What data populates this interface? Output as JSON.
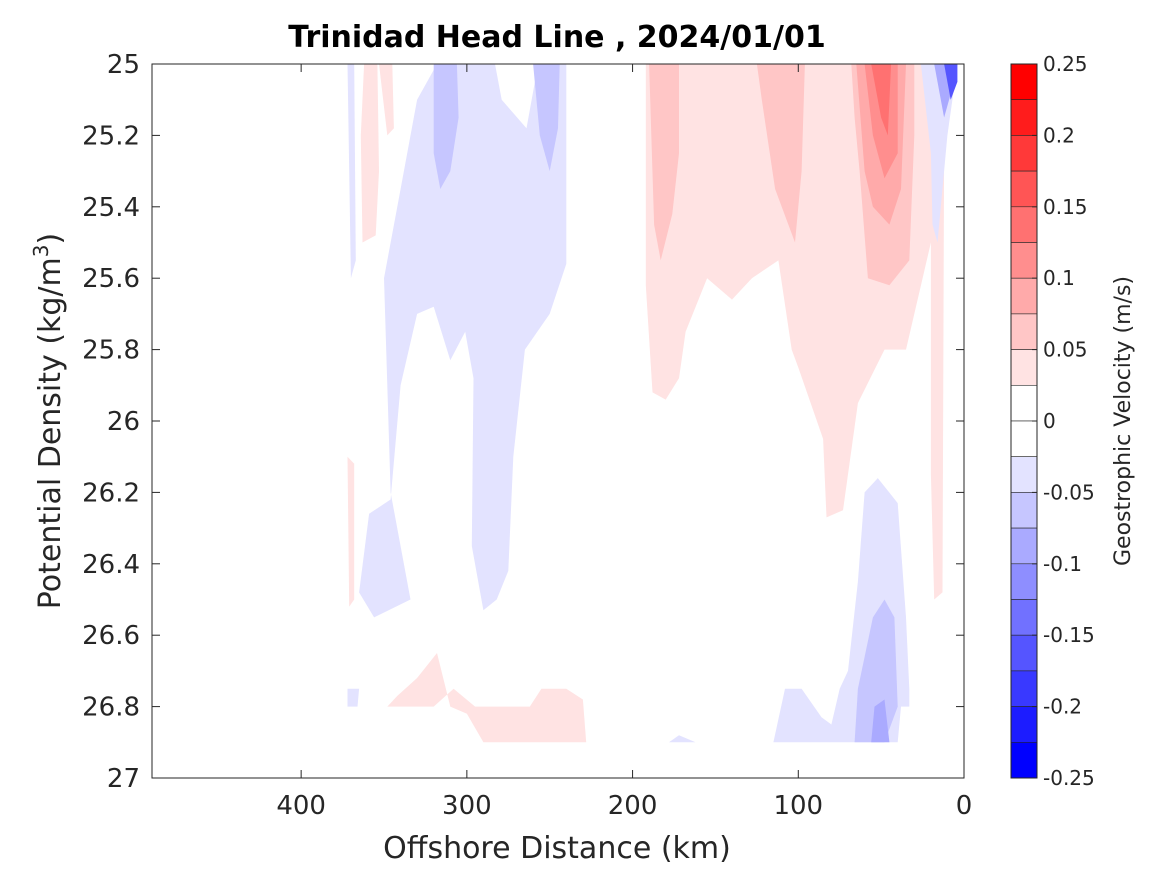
{
  "chart_data": {
    "type": "heatmap",
    "subtype": "filled-contour",
    "title": "Trinidad Head Line , 2024/01/01",
    "xlabel": "Offshore Distance (km)",
    "ylabel_main": "Potential Density (kg/m",
    "ylabel_sup": "3",
    "ylabel_close": ")",
    "xlim": [
      490,
      0
    ],
    "x_reversed": true,
    "ylim": [
      25,
      27
    ],
    "y_reversed": true,
    "x_ticks": [
      400,
      300,
      200,
      100,
      0
    ],
    "x_tick_labels": [
      "400",
      "300",
      "200",
      "100",
      "0"
    ],
    "y_ticks": [
      25,
      25.2,
      25.4,
      25.6,
      25.8,
      26,
      26.2,
      26.4,
      26.6,
      26.8,
      27
    ],
    "y_tick_labels": [
      "25",
      "25.2",
      "25.4",
      "25.6",
      "25.8",
      "26",
      "26.2",
      "26.4",
      "26.6",
      "26.8",
      "27"
    ],
    "colorbar": {
      "label": "Geostrophic Velocity (m/s)",
      "range": [
        -0.25,
        0.25
      ],
      "ticks": [
        0.25,
        0.2,
        0.15,
        0.1,
        0.05,
        0,
        -0.05,
        -0.1,
        -0.15,
        -0.2,
        -0.25
      ],
      "tick_labels": [
        "0.25",
        "0.2",
        "0.15",
        "0.1",
        "0.05",
        "0",
        "-0.05",
        "-0.1",
        "-0.15",
        "-0.2",
        "-0.25"
      ],
      "levels": [
        {
          "lo": 0.225,
          "hi": 0.25,
          "color": "#ff0000"
        },
        {
          "lo": 0.2,
          "hi": 0.225,
          "color": "#ff1c1c"
        },
        {
          "lo": 0.175,
          "hi": 0.2,
          "color": "#ff3939"
        },
        {
          "lo": 0.15,
          "hi": 0.175,
          "color": "#ff5555"
        },
        {
          "lo": 0.125,
          "hi": 0.15,
          "color": "#ff7171"
        },
        {
          "lo": 0.1,
          "hi": 0.125,
          "color": "#ff8e8e"
        },
        {
          "lo": 0.075,
          "hi": 0.1,
          "color": "#ffaaaa"
        },
        {
          "lo": 0.05,
          "hi": 0.075,
          "color": "#ffc6c6"
        },
        {
          "lo": 0.025,
          "hi": 0.05,
          "color": "#ffe3e3"
        },
        {
          "lo": 0.0,
          "hi": 0.025,
          "color": "#ffffff"
        },
        {
          "lo": -0.025,
          "hi": 0.0,
          "color": "#ffffff"
        },
        {
          "lo": -0.05,
          "hi": -0.025,
          "color": "#e3e3ff"
        },
        {
          "lo": -0.075,
          "hi": -0.05,
          "color": "#c6c6ff"
        },
        {
          "lo": -0.1,
          "hi": -0.075,
          "color": "#aaaaff"
        },
        {
          "lo": -0.125,
          "hi": -0.1,
          "color": "#8e8eff"
        },
        {
          "lo": -0.15,
          "hi": -0.125,
          "color": "#7171ff"
        },
        {
          "lo": -0.175,
          "hi": -0.15,
          "color": "#5555ff"
        },
        {
          "lo": -0.2,
          "hi": -0.175,
          "color": "#3939ff"
        },
        {
          "lo": -0.225,
          "hi": -0.2,
          "color": "#1c1cff"
        },
        {
          "lo": -0.25,
          "hi": -0.225,
          "color": "#0000ff"
        }
      ]
    },
    "regions": [
      {
        "name": "offshore-negative-core",
        "level": -0.0375,
        "points": [
          [
            318,
            25
          ],
          [
            283,
            25
          ],
          [
            279,
            25.1
          ],
          [
            264,
            25.18
          ],
          [
            257,
            25
          ],
          [
            240,
            25
          ],
          [
            240,
            25.56
          ],
          [
            250,
            25.7
          ],
          [
            265,
            25.8
          ],
          [
            272,
            26.1
          ],
          [
            275,
            26.42
          ],
          [
            282,
            26.5
          ],
          [
            290,
            26.53
          ],
          [
            297,
            26.35
          ],
          [
            296,
            25.88
          ],
          [
            301,
            25.75
          ],
          [
            310,
            25.83
          ],
          [
            320,
            25.68
          ],
          [
            330,
            25.7
          ],
          [
            340,
            25.9
          ],
          [
            346,
            26.22
          ],
          [
            359,
            26.26
          ],
          [
            365,
            26.48
          ],
          [
            356,
            26.55
          ],
          [
            334,
            26.5
          ],
          [
            346,
            26.2
          ],
          [
            350,
            25.6
          ],
          [
            340,
            25.35
          ],
          [
            330,
            25.1
          ]
        ]
      },
      {
        "name": "offshore-negative-stronger",
        "level": -0.0625,
        "points": [
          [
            320,
            25
          ],
          [
            306,
            25
          ],
          [
            305,
            25.15
          ],
          [
            310,
            25.3
          ],
          [
            316,
            25.35
          ],
          [
            320,
            25.25
          ]
        ]
      },
      {
        "name": "offshore-negative-stronger-2",
        "level": -0.0625,
        "points": [
          [
            260,
            25
          ],
          [
            244,
            25
          ],
          [
            245,
            25.18
          ],
          [
            250,
            25.3
          ],
          [
            256,
            25.2
          ]
        ]
      },
      {
        "name": "edge-negative-strip",
        "level": -0.0375,
        "points": [
          [
            372,
            25
          ],
          [
            368,
            25
          ],
          [
            367,
            25.55
          ],
          [
            370,
            25.6
          ]
        ]
      },
      {
        "name": "left-positive-column",
        "level": 0.0375,
        "points": [
          [
            362,
            25
          ],
          [
            354,
            25
          ],
          [
            353,
            25.3
          ],
          [
            355,
            25.48
          ],
          [
            363,
            25.5
          ],
          [
            364,
            25.2
          ]
        ]
      },
      {
        "name": "left-positive-column-2",
        "level": 0.0375,
        "points": [
          [
            353,
            25
          ],
          [
            345,
            25
          ],
          [
            344,
            25.18
          ],
          [
            348,
            25.2
          ]
        ]
      },
      {
        "name": "deep-positive-edge",
        "level": 0.0375,
        "points": [
          [
            372,
            26.1
          ],
          [
            368,
            26.12
          ],
          [
            368,
            26.5
          ],
          [
            371,
            26.52
          ]
        ]
      },
      {
        "name": "nearshore-positive-main",
        "level": 0.0375,
        "points": [
          [
            192,
            25
          ],
          [
            192,
            25.62
          ],
          [
            188,
            25.92
          ],
          [
            180,
            25.94
          ],
          [
            172,
            25.88
          ],
          [
            168,
            25.75
          ],
          [
            155,
            25.6
          ],
          [
            140,
            25.66
          ],
          [
            128,
            25.6
          ],
          [
            112,
            25.55
          ],
          [
            104,
            25.8
          ],
          [
            100,
            25.85
          ],
          [
            85,
            26.05
          ],
          [
            83,
            26.27
          ],
          [
            73,
            26.25
          ],
          [
            64,
            25.95
          ],
          [
            48,
            25.8
          ],
          [
            35,
            25.8
          ],
          [
            30,
            25.7
          ],
          [
            25,
            25.6
          ],
          [
            20,
            25.5
          ],
          [
            20,
            26.15
          ],
          [
            18,
            26.5
          ],
          [
            13,
            26.48
          ],
          [
            12,
            25.25
          ],
          [
            15,
            25.05
          ],
          [
            18,
            25
          ]
        ]
      },
      {
        "name": "nearshore-positive-stronger-a",
        "level": 0.0625,
        "points": [
          [
            190,
            25
          ],
          [
            187,
            25.45
          ],
          [
            183,
            25.55
          ],
          [
            176,
            25.42
          ],
          [
            172,
            25.25
          ],
          [
            172,
            25
          ]
        ]
      },
      {
        "name": "nearshore-positive-stronger-b",
        "level": 0.0625,
        "points": [
          [
            125,
            25
          ],
          [
            122,
            25.1
          ],
          [
            114,
            25.35
          ],
          [
            102,
            25.5
          ],
          [
            98,
            25.3
          ],
          [
            96,
            25
          ]
        ]
      },
      {
        "name": "nearshore-positive-stronger-c",
        "level": 0.0625,
        "points": [
          [
            68,
            25
          ],
          [
            66,
            25.15
          ],
          [
            63,
            25.3
          ],
          [
            58,
            25.6
          ],
          [
            45,
            25.62
          ],
          [
            33,
            25.55
          ],
          [
            30,
            25.2
          ],
          [
            30,
            25
          ]
        ]
      },
      {
        "name": "nearshore-positive-core-1",
        "level": 0.0875,
        "points": [
          [
            65,
            25
          ],
          [
            60,
            25.3
          ],
          [
            55,
            25.4
          ],
          [
            45,
            25.45
          ],
          [
            38,
            25.35
          ],
          [
            35,
            25
          ]
        ]
      },
      {
        "name": "nearshore-positive-core-2",
        "level": 0.1125,
        "points": [
          [
            60,
            25
          ],
          [
            55,
            25.2
          ],
          [
            48,
            25.32
          ],
          [
            40,
            25.25
          ],
          [
            40,
            25
          ]
        ]
      },
      {
        "name": "nearshore-positive-core-3",
        "level": 0.1375,
        "points": [
          [
            56,
            25
          ],
          [
            50,
            25.15
          ],
          [
            46,
            25.2
          ],
          [
            44,
            25
          ]
        ]
      },
      {
        "name": "deep-positive-blob",
        "level": 0.0375,
        "points": [
          [
            348,
            26.8
          ],
          [
            320,
            26.8
          ],
          [
            308,
            26.75
          ],
          [
            295,
            26.8
          ],
          [
            280,
            26.8
          ],
          [
            262,
            26.8
          ],
          [
            255,
            26.75
          ],
          [
            240,
            26.75
          ],
          [
            230,
            26.78
          ],
          [
            228,
            26.9
          ],
          [
            290,
            26.9
          ],
          [
            300,
            26.82
          ],
          [
            310,
            26.8
          ],
          [
            318,
            26.65
          ],
          [
            330,
            26.72
          ],
          [
            342,
            26.77
          ]
        ]
      },
      {
        "name": "nearshore-deep-negative",
        "level": -0.0375,
        "points": [
          [
            115,
            26.9
          ],
          [
            108,
            26.75
          ],
          [
            98,
            26.75
          ],
          [
            86,
            26.83
          ],
          [
            80,
            26.85
          ],
          [
            75,
            26.75
          ],
          [
            70,
            26.7
          ],
          [
            64,
            26.45
          ],
          [
            60,
            26.2
          ],
          [
            52,
            26.16
          ],
          [
            40,
            26.23
          ],
          [
            35,
            26.55
          ],
          [
            33,
            26.75
          ],
          [
            33,
            26.8
          ],
          [
            38,
            26.8
          ],
          [
            40,
            26.9
          ]
        ]
      },
      {
        "name": "nearshore-deep-negative-2",
        "level": -0.0625,
        "points": [
          [
            66,
            26.9
          ],
          [
            64,
            26.75
          ],
          [
            55,
            26.55
          ],
          [
            48,
            26.5
          ],
          [
            42,
            26.55
          ],
          [
            40,
            26.8
          ],
          [
            48,
            26.9
          ]
        ]
      },
      {
        "name": "nearshore-deep-negative-3",
        "level": -0.0875,
        "points": [
          [
            56,
            26.9
          ],
          [
            54,
            26.8
          ],
          [
            48,
            26.78
          ],
          [
            45,
            26.9
          ]
        ]
      },
      {
        "name": "far-deep-negative",
        "level": -0.0375,
        "points": [
          [
            178,
            26.9
          ],
          [
            172,
            26.88
          ],
          [
            162,
            26.9
          ]
        ]
      },
      {
        "name": "shelf-negative-core-1",
        "level": -0.0375,
        "points": [
          [
            26,
            25
          ],
          [
            20,
            25.25
          ],
          [
            19,
            25.45
          ],
          [
            16,
            25.5
          ],
          [
            10,
            25.2
          ],
          [
            4,
            25
          ],
          [
            26,
            25
          ]
        ]
      },
      {
        "name": "shelf-negative-core-2",
        "level": -0.0875,
        "points": [
          [
            18,
            25
          ],
          [
            12,
            25.15
          ],
          [
            6,
            25.05
          ],
          [
            4,
            25
          ]
        ]
      },
      {
        "name": "shelf-negative-core-3",
        "level": -0.1625,
        "points": [
          [
            12,
            25
          ],
          [
            8,
            25.1
          ],
          [
            4,
            25.05
          ],
          [
            4,
            25
          ]
        ]
      },
      {
        "name": "small-negative-edge",
        "level": -0.0375,
        "points": [
          [
            372,
            26.75
          ],
          [
            365,
            26.75
          ],
          [
            366,
            26.8
          ],
          [
            372,
            26.8
          ]
        ]
      }
    ]
  }
}
